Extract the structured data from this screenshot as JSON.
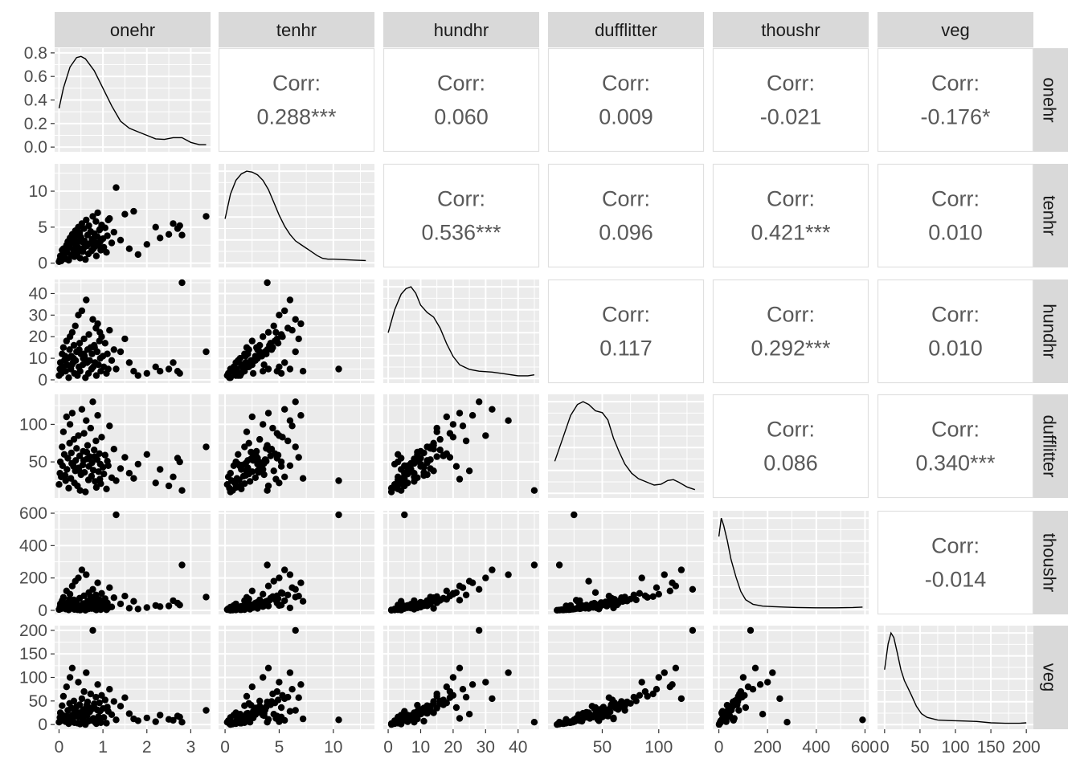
{
  "chart_data": {
    "type": "scatter",
    "title": "",
    "variables": [
      "onehr",
      "tenhr",
      "hundhr",
      "dufflitter",
      "thoushr",
      "veg"
    ],
    "corr_label": "Corr:",
    "correlations": [
      {
        "row": "onehr",
        "col": "tenhr",
        "value": "0.288***"
      },
      {
        "row": "onehr",
        "col": "hundhr",
        "value": "0.060"
      },
      {
        "row": "onehr",
        "col": "dufflitter",
        "value": "0.009"
      },
      {
        "row": "onehr",
        "col": "thoushr",
        "value": "-0.021"
      },
      {
        "row": "onehr",
        "col": "veg",
        "value": "-0.176*"
      },
      {
        "row": "tenhr",
        "col": "hundhr",
        "value": "0.536***"
      },
      {
        "row": "tenhr",
        "col": "dufflitter",
        "value": "0.096"
      },
      {
        "row": "tenhr",
        "col": "thoushr",
        "value": "0.421***"
      },
      {
        "row": "tenhr",
        "col": "veg",
        "value": "0.010"
      },
      {
        "row": "hundhr",
        "col": "dufflitter",
        "value": "0.117"
      },
      {
        "row": "hundhr",
        "col": "thoushr",
        "value": "0.292***"
      },
      {
        "row": "hundhr",
        "col": "veg",
        "value": "0.010"
      },
      {
        "row": "dufflitter",
        "col": "thoushr",
        "value": "0.086"
      },
      {
        "row": "dufflitter",
        "col": "veg",
        "value": "0.340***"
      },
      {
        "row": "thoushr",
        "col": "veg",
        "value": "-0.014"
      }
    ],
    "axes": {
      "onehr": {
        "range": [
          -0.1,
          3.45
        ],
        "ticks": [
          0,
          1,
          2,
          3
        ],
        "tick_labels": [
          "0",
          "1",
          "2",
          "3"
        ]
      },
      "tenhr": {
        "range": [
          -0.6,
          13.8
        ],
        "ticks": [
          0,
          5,
          10
        ],
        "tick_labels": [
          "0",
          "5",
          "10"
        ]
      },
      "hundhr": {
        "range": [
          -1.5,
          46.5
        ],
        "ticks": [
          0,
          10,
          20,
          30,
          40
        ],
        "tick_labels": [
          "0",
          "10",
          "20",
          "30",
          "40"
        ]
      },
      "dufflitter": {
        "range": [
          2,
          140
        ],
        "ticks": [
          50,
          100
        ],
        "tick_labels": [
          "50",
          "100"
        ]
      },
      "thoushr": {
        "range": [
          -25,
          615
        ],
        "ticks": [
          0,
          200,
          400,
          600
        ],
        "tick_labels": [
          "0",
          "200",
          "400",
          "600"
        ]
      },
      "veg": {
        "range": [
          -10,
          210
        ],
        "ticks": [
          0,
          50,
          100,
          150,
          200
        ],
        "tick_labels": [
          "0",
          "50",
          "100",
          "150",
          "200"
        ]
      }
    },
    "density": {
      "y_range": [
        -0.04,
        0.84
      ],
      "y_ticks": [
        0.0,
        0.2,
        0.4,
        0.6,
        0.8
      ],
      "y_tick_labels": [
        "0.0",
        "0.2",
        "0.4",
        "0.6",
        "0.8"
      ],
      "curves": {
        "onehr": [
          [
            0,
            0.33
          ],
          [
            0.1,
            0.5
          ],
          [
            0.25,
            0.68
          ],
          [
            0.4,
            0.76
          ],
          [
            0.5,
            0.77
          ],
          [
            0.6,
            0.75
          ],
          [
            0.8,
            0.65
          ],
          [
            1.0,
            0.5
          ],
          [
            1.2,
            0.35
          ],
          [
            1.4,
            0.22
          ],
          [
            1.6,
            0.16
          ],
          [
            1.8,
            0.13
          ],
          [
            2.0,
            0.1
          ],
          [
            2.2,
            0.07
          ],
          [
            2.4,
            0.065
          ],
          [
            2.6,
            0.08
          ],
          [
            2.8,
            0.08
          ],
          [
            3.0,
            0.04
          ],
          [
            3.2,
            0.02
          ],
          [
            3.35,
            0.02
          ]
        ],
        "tenhr": [
          [
            0,
            0.48
          ],
          [
            0.5,
            0.75
          ],
          [
            1.0,
            0.9
          ],
          [
            1.5,
            0.97
          ],
          [
            2.0,
            1.0
          ],
          [
            2.5,
            0.99
          ],
          [
            3.0,
            0.96
          ],
          [
            3.5,
            0.9
          ],
          [
            4.0,
            0.8
          ],
          [
            4.5,
            0.66
          ],
          [
            5.0,
            0.52
          ],
          [
            5.5,
            0.4
          ],
          [
            6.0,
            0.31
          ],
          [
            6.5,
            0.24
          ],
          [
            7.0,
            0.2
          ],
          [
            7.5,
            0.16
          ],
          [
            8.0,
            0.12
          ],
          [
            8.5,
            0.08
          ],
          [
            9.0,
            0.05
          ],
          [
            9.5,
            0.04
          ],
          [
            10.0,
            0.04
          ],
          [
            11.0,
            0.035
          ],
          [
            12.0,
            0.03
          ],
          [
            13.0,
            0.025
          ]
        ],
        "hundhr": [
          [
            0,
            0.5
          ],
          [
            2,
            0.75
          ],
          [
            4,
            0.92
          ],
          [
            5.5,
            0.98
          ],
          [
            7,
            1.0
          ],
          [
            8.5,
            0.93
          ],
          [
            10,
            0.8
          ],
          [
            12,
            0.72
          ],
          [
            14,
            0.67
          ],
          [
            16,
            0.55
          ],
          [
            18,
            0.38
          ],
          [
            20,
            0.24
          ],
          [
            22,
            0.15
          ],
          [
            25,
            0.1
          ],
          [
            28,
            0.08
          ],
          [
            32,
            0.07
          ],
          [
            36,
            0.05
          ],
          [
            40,
            0.03
          ],
          [
            43,
            0.03
          ],
          [
            45,
            0.04
          ]
        ],
        "dufflitter": [
          [
            8,
            0.35
          ],
          [
            15,
            0.6
          ],
          [
            22,
            0.85
          ],
          [
            28,
            0.97
          ],
          [
            33,
            1.0
          ],
          [
            38,
            0.97
          ],
          [
            44,
            0.9
          ],
          [
            50,
            0.88
          ],
          [
            55,
            0.8
          ],
          [
            60,
            0.6
          ],
          [
            65,
            0.45
          ],
          [
            70,
            0.32
          ],
          [
            76,
            0.22
          ],
          [
            82,
            0.16
          ],
          [
            90,
            0.12
          ],
          [
            96,
            0.09
          ],
          [
            102,
            0.1
          ],
          [
            108,
            0.14
          ],
          [
            113,
            0.15
          ],
          [
            118,
            0.12
          ],
          [
            125,
            0.07
          ],
          [
            132,
            0.04
          ]
        ],
        "thoushr": [
          [
            0,
            0.8
          ],
          [
            10,
            1.0
          ],
          [
            20,
            0.92
          ],
          [
            35,
            0.75
          ],
          [
            50,
            0.55
          ],
          [
            70,
            0.36
          ],
          [
            90,
            0.2
          ],
          [
            110,
            0.11
          ],
          [
            140,
            0.06
          ],
          [
            180,
            0.04
          ],
          [
            220,
            0.035
          ],
          [
            270,
            0.03
          ],
          [
            320,
            0.025
          ],
          [
            400,
            0.022
          ],
          [
            480,
            0.022
          ],
          [
            550,
            0.025
          ],
          [
            590,
            0.03
          ]
        ],
        "veg": [
          [
            0,
            0.6
          ],
          [
            5,
            0.88
          ],
          [
            9,
            1.0
          ],
          [
            13,
            0.95
          ],
          [
            18,
            0.78
          ],
          [
            23,
            0.6
          ],
          [
            28,
            0.48
          ],
          [
            33,
            0.4
          ],
          [
            38,
            0.32
          ],
          [
            45,
            0.2
          ],
          [
            52,
            0.12
          ],
          [
            60,
            0.08
          ],
          [
            75,
            0.05
          ],
          [
            90,
            0.045
          ],
          [
            110,
            0.04
          ],
          [
            130,
            0.035
          ],
          [
            150,
            0.02
          ],
          [
            170,
            0.015
          ],
          [
            190,
            0.015
          ],
          [
            200,
            0.02
          ]
        ]
      }
    },
    "points": {
      "onehr": [
        0.0,
        0.02,
        0.03,
        0.05,
        0.07,
        0.08,
        0.1,
        0.12,
        0.15,
        0.17,
        0.18,
        0.2,
        0.22,
        0.24,
        0.25,
        0.27,
        0.28,
        0.3,
        0.32,
        0.34,
        0.35,
        0.37,
        0.38,
        0.4,
        0.42,
        0.44,
        0.45,
        0.47,
        0.48,
        0.5,
        0.52,
        0.54,
        0.55,
        0.57,
        0.58,
        0.6,
        0.62,
        0.64,
        0.65,
        0.67,
        0.68,
        0.7,
        0.72,
        0.74,
        0.75,
        0.77,
        0.78,
        0.8,
        0.82,
        0.84,
        0.85,
        0.87,
        0.88,
        0.9,
        0.92,
        0.94,
        0.95,
        0.97,
        1.0,
        1.02,
        1.05,
        1.08,
        1.1,
        1.15,
        1.2,
        1.25,
        1.3,
        1.4,
        1.5,
        1.6,
        1.7,
        1.8,
        2.0,
        2.2,
        2.3,
        2.5,
        2.6,
        2.7,
        2.75,
        2.8,
        3.35,
        0.33,
        0.46,
        0.63,
        0.81,
        0.93,
        1.12,
        0.14,
        0.29,
        0.56
      ],
      "tenhr": [
        0.2,
        0.5,
        1.0,
        0.3,
        1.8,
        0.8,
        2.0,
        1.2,
        0.6,
        2.5,
        1.5,
        3.0,
        0.4,
        2.2,
        3.5,
        1.1,
        2.8,
        4.0,
        1.9,
        3.2,
        0.9,
        4.5,
        2.6,
        3.8,
        1.4,
        5.0,
        2.1,
        4.2,
        0.7,
        3.6,
        5.5,
        1.6,
        2.9,
        4.8,
        3.1,
        0.5,
        6.0,
        2.4,
        3.9,
        1.3,
        5.2,
        2.7,
        4.4,
        1.7,
        3.3,
        6.5,
        2.0,
        4.1,
        2.3,
        5.8,
        1.0,
        3.7,
        7.0,
        2.5,
        4.6,
        3.0,
        1.8,
        5.3,
        3.4,
        2.2,
        4.9,
        1.5,
        3.8,
        6.2,
        2.8,
        4.3,
        10.5,
        3.2,
        6.8,
        2.0,
        7.2,
        1.2,
        2.6,
        5.0,
        3.5,
        4.0,
        5.5,
        4.8,
        5.2,
        3.9,
        6.5,
        1.4,
        3.0,
        2.4,
        2.9,
        4.7,
        6.0,
        1.9,
        3.6,
        2.1
      ],
      "hundhr": [
        2,
        5,
        8,
        3,
        12,
        6,
        15,
        9,
        4,
        18,
        7,
        10,
        1,
        14,
        20,
        5,
        11,
        22,
        8,
        16,
        3,
        25,
        9,
        13,
        2,
        30,
        6,
        17,
        4,
        12,
        32,
        7,
        10,
        19,
        11,
        1,
        37,
        8,
        14,
        3,
        21,
        9,
        15,
        5,
        12,
        28,
        6,
        16,
        8,
        24,
        2,
        13,
        26,
        7,
        18,
        10,
        4,
        20,
        11,
        6,
        17,
        3,
        12,
        23,
        9,
        14,
        5,
        13,
        19,
        8,
        4,
        2,
        3,
        6,
        4,
        5,
        8,
        4,
        3,
        45,
        13,
        10,
        14,
        9,
        15,
        22,
        5,
        11,
        7,
        12
      ],
      "dufflitter": [
        20,
        35,
        50,
        30,
        70,
        45,
        90,
        60,
        25,
        110,
        40,
        55,
        15,
        75,
        100,
        28,
        62,
        115,
        48,
        80,
        22,
        38,
        52,
        68,
        18,
        85,
        42,
        58,
        12,
        33,
        120,
        46,
        64,
        88,
        36,
        10,
        105,
        54,
        72,
        26,
        44,
        57,
        95,
        31,
        49,
        130,
        39,
        66,
        24,
        78,
        16,
        53,
        112,
        37,
        61,
        47,
        21,
        83,
        43,
        34,
        59,
        14,
        51,
        98,
        29,
        67,
        25,
        41,
        56,
        35,
        28,
        47,
        60,
        22,
        40,
        18,
        30,
        55,
        50,
        12,
        70,
        44,
        38,
        63,
        57,
        27,
        45,
        32,
        48,
        52
      ],
      "thoushr": [
        5,
        20,
        40,
        10,
        60,
        30,
        80,
        15,
        8,
        120,
        25,
        50,
        3,
        70,
        100,
        12,
        45,
        150,
        22,
        65,
        6,
        180,
        35,
        55,
        4,
        200,
        18,
        75,
        2,
        28,
        250,
        14,
        42,
        90,
        32,
        1,
        220,
        26,
        58,
        9,
        110,
        38,
        85,
        11,
        48,
        130,
        16,
        62,
        7,
        95,
        3,
        52,
        170,
        24,
        68,
        36,
        5,
        105,
        44,
        19,
        72,
        4,
        46,
        140,
        21,
        78,
        590,
        40,
        88,
        13,
        56,
        8,
        17,
        30,
        23,
        27,
        60,
        45,
        33,
        280,
        82,
        20,
        12,
        34,
        47,
        63,
        15,
        29,
        38,
        41
      ],
      "veg": [
        5,
        15,
        25,
        8,
        40,
        20,
        60,
        12,
        6,
        80,
        18,
        30,
        2,
        45,
        100,
        10,
        35,
        120,
        14,
        50,
        4,
        22,
        28,
        38,
        3,
        90,
        16,
        42,
        1,
        24,
        55,
        11,
        32,
        70,
        26,
        0,
        110,
        19,
        48,
        7,
        36,
        27,
        65,
        9,
        33,
        200,
        13,
        44,
        5,
        58,
        2,
        31,
        85,
        17,
        46,
        29,
        4,
        62,
        34,
        15,
        52,
        3,
        37,
        75,
        21,
        49,
        10,
        39,
        57,
        23,
        12,
        8,
        14,
        6,
        20,
        11,
        9,
        18,
        16,
        5,
        30,
        22,
        25,
        41,
        35,
        13,
        28,
        7,
        19,
        24
      ]
    }
  }
}
